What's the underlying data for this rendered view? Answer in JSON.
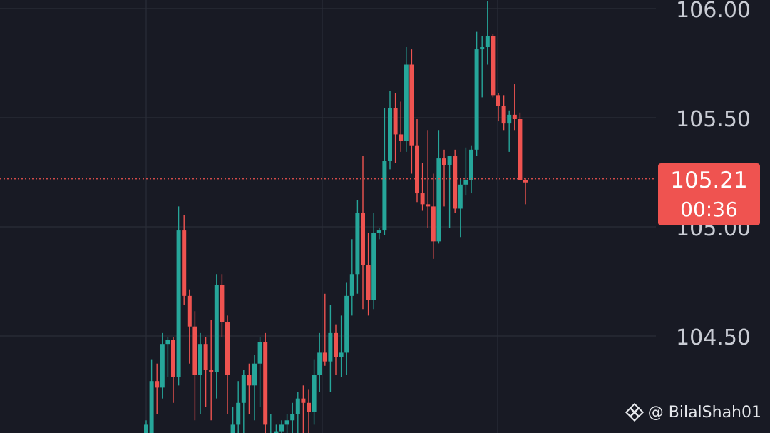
{
  "colors": {
    "background": "#181a24",
    "grid": "#2a2d38",
    "up": "#26a69a",
    "down": "#ef5350",
    "price_line": "#ef5350",
    "axis_text": "#c9ccd4"
  },
  "price_tag": {
    "price": "105.21",
    "timer": "00:36"
  },
  "watermark": {
    "text": "@ BilalShah01",
    "icon": "binance-logo-icon"
  },
  "chart_data": {
    "type": "candlestick",
    "y_axis_side": "right",
    "ylim": [
      104.07,
      106.04
    ],
    "y_ticks": [
      "106.00",
      "105.50",
      "105.00",
      "104.50"
    ],
    "y_tick_values": [
      106.0,
      105.5,
      105.0,
      104.5
    ],
    "current_price": 105.21,
    "grid": true,
    "candles": [
      {
        "o": 104.0,
        "h": 104.12,
        "l": 104.0,
        "c": 104.1
      },
      {
        "o": 104.0,
        "h": 104.4,
        "l": 104.0,
        "c": 104.3
      },
      {
        "o": 104.3,
        "h": 104.38,
        "l": 104.15,
        "c": 104.27
      },
      {
        "o": 104.27,
        "h": 104.52,
        "l": 104.22,
        "c": 104.47
      },
      {
        "o": 104.47,
        "h": 104.5,
        "l": 104.32,
        "c": 104.49
      },
      {
        "o": 104.49,
        "h": 104.5,
        "l": 104.2,
        "c": 104.32
      },
      {
        "o": 104.32,
        "h": 105.1,
        "l": 104.28,
        "c": 104.99
      },
      {
        "o": 104.99,
        "h": 105.06,
        "l": 104.65,
        "c": 104.69
      },
      {
        "o": 104.69,
        "h": 104.72,
        "l": 104.38,
        "c": 104.55
      },
      {
        "o": 104.55,
        "h": 104.62,
        "l": 104.12,
        "c": 104.33
      },
      {
        "o": 104.33,
        "h": 104.52,
        "l": 104.15,
        "c": 104.47
      },
      {
        "o": 104.47,
        "h": 104.5,
        "l": 104.18,
        "c": 104.35
      },
      {
        "o": 104.35,
        "h": 104.58,
        "l": 104.12,
        "c": 104.34
      },
      {
        "o": 104.34,
        "h": 104.79,
        "l": 104.22,
        "c": 104.74
      },
      {
        "o": 104.74,
        "h": 104.79,
        "l": 104.5,
        "c": 104.57
      },
      {
        "o": 104.57,
        "h": 104.6,
        "l": 104.15,
        "c": 104.33
      },
      {
        "o": 104.0,
        "h": 104.18,
        "l": 104.0,
        "c": 104.1
      },
      {
        "o": 104.1,
        "h": 104.3,
        "l": 104.0,
        "c": 104.2
      },
      {
        "o": 104.2,
        "h": 104.35,
        "l": 104.0,
        "c": 104.33
      },
      {
        "o": 104.33,
        "h": 104.38,
        "l": 104.15,
        "c": 104.28
      },
      {
        "o": 104.28,
        "h": 104.42,
        "l": 104.12,
        "c": 104.38
      },
      {
        "o": 104.38,
        "h": 104.5,
        "l": 104.18,
        "c": 104.48
      },
      {
        "o": 104.48,
        "h": 104.52,
        "l": 104.05,
        "c": 104.1
      },
      {
        "o": 104.0,
        "h": 104.15,
        "l": 104.0,
        "c": 104.05
      },
      {
        "o": 104.0,
        "h": 104.1,
        "l": 104.0,
        "c": 104.07
      },
      {
        "o": 104.07,
        "h": 104.12,
        "l": 104.0,
        "c": 104.1
      },
      {
        "o": 104.1,
        "h": 104.15,
        "l": 104.0,
        "c": 104.12
      },
      {
        "o": 104.12,
        "h": 104.2,
        "l": 104.0,
        "c": 104.15
      },
      {
        "o": 104.15,
        "h": 104.25,
        "l": 104.0,
        "c": 104.22
      },
      {
        "o": 104.22,
        "h": 104.28,
        "l": 104.0,
        "c": 104.2
      },
      {
        "o": 104.2,
        "h": 104.26,
        "l": 104.05,
        "c": 104.16
      },
      {
        "o": 104.16,
        "h": 104.4,
        "l": 104.1,
        "c": 104.33
      },
      {
        "o": 104.33,
        "h": 104.52,
        "l": 104.25,
        "c": 104.43
      },
      {
        "o": 104.43,
        "h": 104.7,
        "l": 104.37,
        "c": 104.39
      },
      {
        "o": 104.39,
        "h": 104.65,
        "l": 104.25,
        "c": 104.52
      },
      {
        "o": 104.52,
        "h": 104.56,
        "l": 104.33,
        "c": 104.41
      },
      {
        "o": 104.41,
        "h": 104.6,
        "l": 104.32,
        "c": 104.43
      },
      {
        "o": 104.43,
        "h": 104.75,
        "l": 104.33,
        "c": 104.69
      },
      {
        "o": 104.69,
        "h": 104.95,
        "l": 104.6,
        "c": 104.79
      },
      {
        "o": 104.79,
        "h": 105.13,
        "l": 104.7,
        "c": 105.07
      },
      {
        "o": 105.07,
        "h": 105.33,
        "l": 104.63,
        "c": 104.83
      },
      {
        "o": 104.83,
        "h": 104.98,
        "l": 104.6,
        "c": 104.67
      },
      {
        "o": 104.67,
        "h": 105.07,
        "l": 104.63,
        "c": 104.98
      },
      {
        "o": 104.98,
        "h": 105.0,
        "l": 104.95,
        "c": 104.99
      },
      {
        "o": 104.99,
        "h": 105.55,
        "l": 104.97,
        "c": 105.31
      },
      {
        "o": 105.31,
        "h": 105.63,
        "l": 105.27,
        "c": 105.55
      },
      {
        "o": 105.55,
        "h": 105.62,
        "l": 105.3,
        "c": 105.43
      },
      {
        "o": 105.43,
        "h": 105.58,
        "l": 105.35,
        "c": 105.4
      },
      {
        "o": 105.4,
        "h": 105.83,
        "l": 105.35,
        "c": 105.75
      },
      {
        "o": 105.75,
        "h": 105.82,
        "l": 105.25,
        "c": 105.38
      },
      {
        "o": 105.38,
        "h": 105.5,
        "l": 105.12,
        "c": 105.16
      },
      {
        "o": 105.16,
        "h": 105.3,
        "l": 105.08,
        "c": 105.11
      },
      {
        "o": 105.11,
        "h": 105.45,
        "l": 105.0,
        "c": 105.1
      },
      {
        "o": 105.1,
        "h": 105.25,
        "l": 104.86,
        "c": 104.94
      },
      {
        "o": 104.94,
        "h": 105.45,
        "l": 104.93,
        "c": 105.32
      },
      {
        "o": 105.32,
        "h": 105.36,
        "l": 105.1,
        "c": 105.29
      },
      {
        "o": 105.29,
        "h": 105.33,
        "l": 105.0,
        "c": 105.33
      },
      {
        "o": 105.33,
        "h": 105.36,
        "l": 105.07,
        "c": 105.09
      },
      {
        "o": 105.09,
        "h": 105.23,
        "l": 104.96,
        "c": 105.2
      },
      {
        "o": 105.2,
        "h": 105.37,
        "l": 105.15,
        "c": 105.22
      },
      {
        "o": 105.22,
        "h": 105.38,
        "l": 105.16,
        "c": 105.36
      },
      {
        "o": 105.36,
        "h": 105.9,
        "l": 105.33,
        "c": 105.82
      },
      {
        "o": 105.82,
        "h": 105.88,
        "l": 105.6,
        "c": 105.83
      },
      {
        "o": 105.83,
        "h": 106.04,
        "l": 105.75,
        "c": 105.88
      },
      {
        "o": 105.88,
        "h": 105.89,
        "l": 105.6,
        "c": 105.61
      },
      {
        "o": 105.61,
        "h": 105.62,
        "l": 105.49,
        "c": 105.56
      },
      {
        "o": 105.56,
        "h": 105.61,
        "l": 105.45,
        "c": 105.48
      },
      {
        "o": 105.48,
        "h": 105.54,
        "l": 105.35,
        "c": 105.52
      },
      {
        "o": 105.52,
        "h": 105.66,
        "l": 105.45,
        "c": 105.5
      },
      {
        "o": 105.5,
        "h": 105.53,
        "l": 105.22,
        "c": 105.22
      },
      {
        "o": 105.22,
        "h": 105.23,
        "l": 105.11,
        "c": 105.21
      }
    ]
  }
}
